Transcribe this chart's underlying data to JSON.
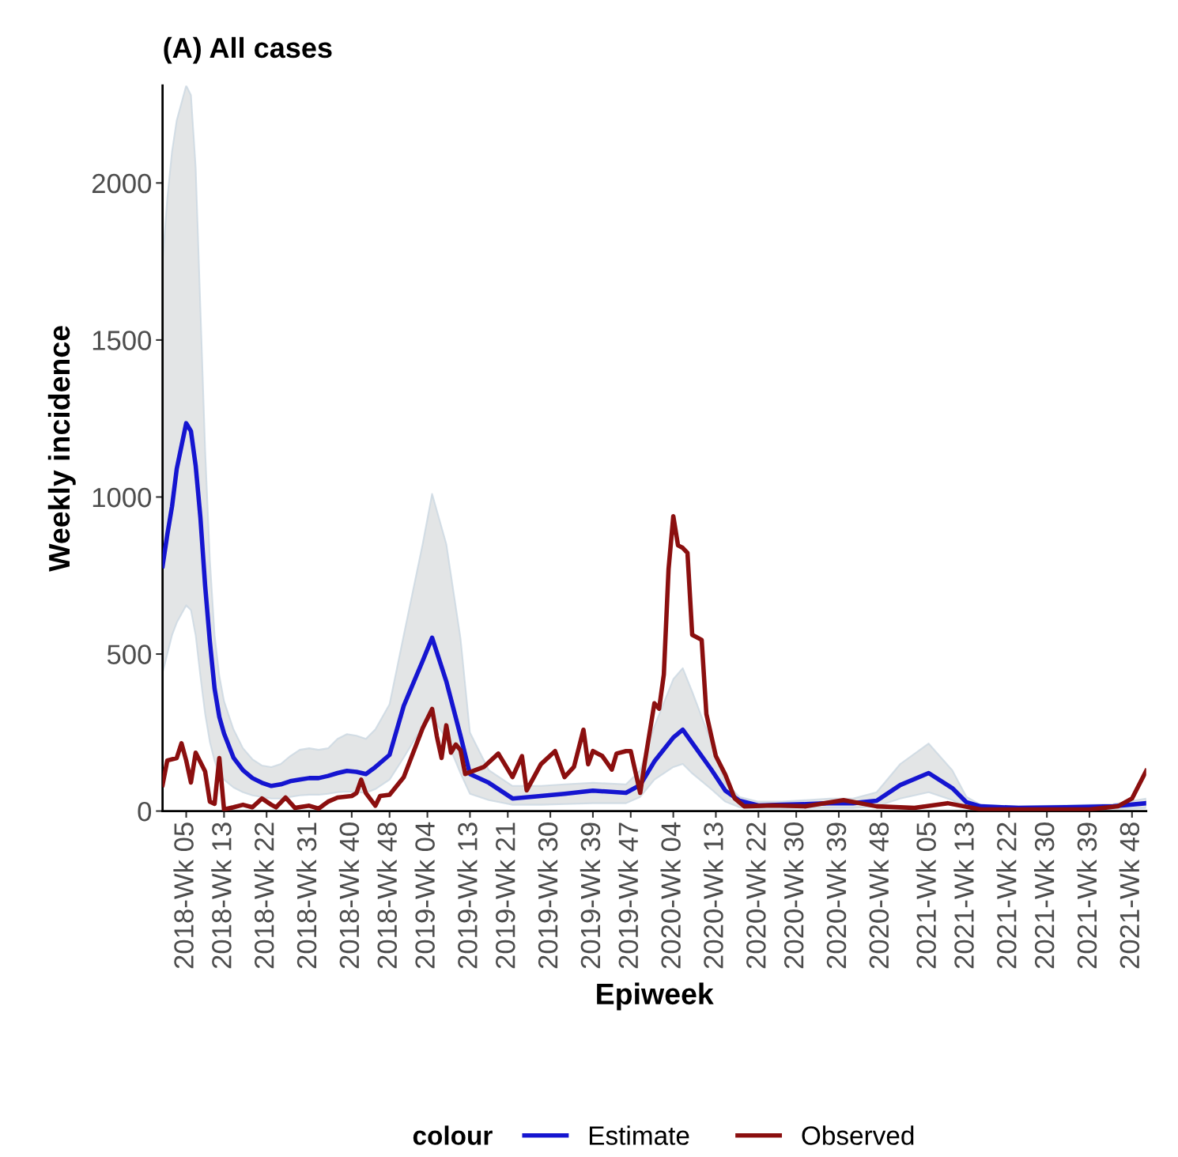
{
  "chart_data": {
    "type": "line",
    "title": "(A) All cases",
    "xlabel": "Epiweek",
    "ylabel": "Weekly incidence",
    "legend_title": "colour",
    "legend": "bottom",
    "grid": false,
    "marker": "none",
    "line_style": "solid",
    "ylim": [
      0,
      2310
    ],
    "yticks": [
      0,
      500,
      1000,
      1500,
      2000
    ],
    "categories": [
      null,
      null,
      null,
      null,
      null,
      "2018-Wk 05",
      null,
      null,
      null,
      null,
      null,
      null,
      null,
      "2018-Wk 13",
      null,
      null,
      null,
      null,
      null,
      null,
      null,
      null,
      "2018-Wk 22",
      null,
      null,
      null,
      null,
      null,
      null,
      null,
      null,
      "2018-Wk 31",
      null,
      null,
      null,
      null,
      null,
      null,
      null,
      null,
      "2018-Wk 40",
      null,
      null,
      null,
      null,
      null,
      null,
      null,
      "2018-Wk 48",
      null,
      null,
      null,
      null,
      null,
      null,
      null,
      "2019-Wk 04",
      null,
      null,
      null,
      null,
      null,
      null,
      null,
      null,
      "2019-Wk 13",
      null,
      null,
      null,
      null,
      null,
      null,
      null,
      "2019-Wk 21",
      null,
      null,
      null,
      null,
      null,
      null,
      null,
      null,
      "2019-Wk 30",
      null,
      null,
      null,
      null,
      null,
      null,
      null,
      null,
      "2019-Wk 39",
      null,
      null,
      null,
      null,
      null,
      null,
      null,
      "2019-Wk 47",
      null,
      null,
      null,
      null,
      null,
      null,
      null,
      null,
      "2020-Wk 04",
      null,
      null,
      null,
      null,
      null,
      null,
      null,
      null,
      "2020-Wk 13",
      null,
      null,
      null,
      null,
      null,
      null,
      null,
      null,
      "2020-Wk 22",
      null,
      null,
      null,
      null,
      null,
      null,
      null,
      "2020-Wk 30",
      null,
      null,
      null,
      null,
      null,
      null,
      null,
      null,
      "2020-Wk 39",
      null,
      null,
      null,
      null,
      null,
      null,
      null,
      null,
      "2020-Wk 48",
      null,
      null,
      null,
      null,
      null,
      null,
      null,
      null,
      null,
      "2021-Wk 05",
      null,
      null,
      null,
      null,
      null,
      null,
      null,
      "2021-Wk 13",
      null,
      null,
      null,
      null,
      null,
      null,
      null,
      null,
      "2021-Wk 22",
      null,
      null,
      null,
      null,
      null,
      null,
      null,
      "2021-Wk 30",
      null,
      null,
      null,
      null,
      null,
      null,
      null,
      null,
      "2021-Wk 39",
      null,
      null,
      null,
      null,
      null,
      null,
      null,
      null,
      "2021-Wk 48",
      null,
      null,
      null
    ],
    "series": [
      {
        "name": "Estimate",
        "color": "#1515d0",
        "values": [
          780,
          880,
          970,
          1090,
          null,
          1235,
          1210,
          1100,
          935,
          718,
          540,
          390,
          300,
          247,
          null,
          170,
          null,
          130,
          null,
          105,
          null,
          90,
          null,
          80,
          null,
          85,
          null,
          95,
          null,
          100,
          null,
          105,
          null,
          105,
          null,
          112,
          null,
          121,
          null,
          128,
          null,
          125,
          null,
          118,
          null,
          140,
          null,
          null,
          179,
          null,
          null,
          335,
          null,
          null,
          null,
          478,
          null,
          552,
          null,
          null,
          413,
          null,
          null,
          240,
          null,
          118,
          null,
          null,
          null,
          90,
          null,
          null,
          null,
          null,
          40,
          null,
          null,
          null,
          null,
          null,
          48,
          null,
          null,
          null,
          null,
          55,
          null,
          null,
          null,
          null,
          null,
          65,
          null,
          null,
          null,
          null,
          null,
          null,
          58,
          null,
          null,
          83,
          null,
          null,
          158,
          null,
          null,
          null,
          234,
          null,
          259,
          null,
          217,
          null,
          null,
          null,
          133,
          null,
          null,
          65,
          null,
          null,
          33,
          null,
          null,
          null,
          18,
          null,
          null,
          null,
          null,
          20,
          null,
          null,
          null,
          null,
          22,
          null,
          null,
          null,
          null,
          25,
          null,
          null,
          null,
          null,
          25,
          null,
          null,
          null,
          null,
          33,
          null,
          null,
          null,
          null,
          83,
          null,
          null,
          null,
          null,
          null,
          121,
          null,
          null,
          null,
          null,
          73,
          null,
          null,
          28,
          null,
          null,
          15,
          null,
          null,
          null,
          null,
          null,
          null,
          null,
          10,
          null,
          null,
          null,
          null,
          null,
          null,
          null,
          null,
          null,
          12,
          null,
          null,
          null,
          null,
          null,
          null,
          null,
          null,
          null,
          15,
          null,
          null,
          null,
          null,
          null,
          null,
          25
        ],
        "lower": [
          440,
          500,
          560,
          600,
          null,
          655,
          640,
          560,
          430,
          310,
          220,
          160,
          120,
          100,
          null,
          75,
          null,
          60,
          null,
          50,
          null,
          45,
          null,
          40,
          null,
          40,
          null,
          45,
          null,
          50,
          null,
          52,
          null,
          52,
          null,
          55,
          null,
          60,
          null,
          62,
          null,
          60,
          null,
          58,
          null,
          70,
          null,
          null,
          100,
          null,
          null,
          170,
          null,
          null,
          null,
          270,
          null,
          300,
          null,
          null,
          230,
          null,
          null,
          120,
          null,
          55,
          null,
          null,
          null,
          35,
          null,
          null,
          null,
          null,
          20,
          null,
          null,
          null,
          null,
          null,
          20,
          null,
          null,
          null,
          null,
          22,
          null,
          null,
          null,
          null,
          null,
          25,
          null,
          null,
          null,
          null,
          null,
          null,
          25,
          null,
          null,
          45,
          null,
          null,
          100,
          null,
          null,
          null,
          140,
          null,
          150,
          null,
          120,
          null,
          null,
          null,
          70,
          null,
          null,
          30,
          null,
          null,
          12,
          null,
          null,
          null,
          8,
          null,
          null,
          null,
          null,
          8,
          null,
          null,
          null,
          null,
          10,
          null,
          null,
          null,
          null,
          10,
          null,
          null,
          null,
          null,
          10,
          null,
          null,
          null,
          null,
          15,
          null,
          null,
          null,
          null,
          40,
          null,
          null,
          null,
          null,
          null,
          60,
          null,
          null,
          null,
          null,
          35,
          null,
          null,
          10,
          null,
          null,
          5,
          null,
          null,
          null,
          null,
          null,
          null,
          null,
          4,
          null,
          null,
          null,
          null,
          null,
          null,
          null,
          null,
          null,
          5,
          null,
          null,
          null,
          null,
          null,
          null,
          null,
          null,
          null,
          6,
          null,
          null,
          null,
          null,
          null,
          null,
          10
        ],
        "upper": [
          1750,
          1950,
          2100,
          2200,
          null,
          2310,
          2280,
          2050,
          1600,
          1150,
          800,
          560,
          430,
          350,
          null,
          260,
          null,
          200,
          null,
          165,
          null,
          145,
          null,
          140,
          null,
          150,
          null,
          175,
          null,
          195,
          null,
          200,
          null,
          195,
          null,
          200,
          null,
          230,
          null,
          245,
          null,
          240,
          null,
          230,
          null,
          260,
          null,
          null,
          340,
          null,
          null,
          560,
          null,
          null,
          null,
          850,
          null,
          1010,
          null,
          null,
          850,
          null,
          null,
          550,
          null,
          250,
          null,
          null,
          null,
          130,
          null,
          null,
          null,
          null,
          80,
          null,
          null,
          null,
          null,
          null,
          80,
          null,
          null,
          null,
          null,
          85,
          null,
          null,
          null,
          null,
          null,
          90,
          null,
          null,
          null,
          null,
          null,
          null,
          85,
          null,
          null,
          130,
          null,
          null,
          270,
          null,
          null,
          null,
          420,
          null,
          455,
          null,
          380,
          null,
          null,
          null,
          220,
          null,
          null,
          90,
          null,
          null,
          45,
          null,
          null,
          null,
          30,
          null,
          null,
          null,
          null,
          30,
          null,
          null,
          null,
          null,
          35,
          null,
          null,
          null,
          null,
          40,
          null,
          null,
          null,
          null,
          40,
          null,
          null,
          null,
          null,
          60,
          null,
          null,
          null,
          null,
          150,
          null,
          null,
          null,
          null,
          null,
          215,
          null,
          null,
          null,
          null,
          130,
          null,
          null,
          45,
          null,
          null,
          20,
          null,
          null,
          null,
          null,
          null,
          null,
          null,
          15,
          null,
          null,
          null,
          null,
          null,
          null,
          null,
          null,
          null,
          18,
          null,
          null,
          null,
          null,
          null,
          null,
          null,
          null,
          null,
          22,
          null,
          null,
          null,
          null,
          null,
          null,
          40
        ]
      },
      {
        "name": "Observed",
        "color": "#8b0f0f",
        "values": [
          83,
          161,
          null,
          169,
          216,
          161,
          91,
          186,
          null,
          126,
          30,
          23,
          169,
          5,
          null,
          12,
          null,
          20,
          null,
          12,
          null,
          40,
          null,
          20,
          12,
          null,
          43,
          null,
          10,
          null,
          null,
          17,
          null,
          8,
          null,
          30,
          null,
          43,
          null,
          null,
          48,
          57,
          100,
          57,
          null,
          17,
          48,
          null,
          52,
          null,
          null,
          108,
          null,
          186,
          null,
          264,
          null,
          325,
          238,
          169,
          273,
          186,
          212,
          194,
          118,
          124,
          null,
          null,
          141,
          null,
          null,
          183,
          null,
          null,
          108,
          null,
          175,
          66,
          null,
          null,
          149,
          null,
          null,
          191,
          null,
          108,
          null,
          141,
          null,
          259,
          149,
          191,
          null,
          175,
          null,
          132,
          183,
          null,
          191,
          191,
          null,
          58,
          158,
          null,
          343,
          326,
          435,
          771,
          939,
          846,
          838,
          822,
          561,
          null,
          545,
          309,
          null,
          175,
          null,
          116,
          null,
          40,
          null,
          15,
          null,
          null,
          null,
          null,
          null,
          18,
          null,
          null,
          null,
          null,
          null,
          null,
          15,
          null,
          null,
          null,
          null,
          null,
          null,
          null,
          35,
          null,
          null,
          null,
          null,
          null,
          null,
          15,
          null,
          null,
          null,
          null,
          null,
          null,
          null,
          10,
          null,
          null,
          null,
          null,
          null,
          null,
          25,
          null,
          null,
          null,
          null,
          null,
          null,
          5,
          null,
          null,
          null,
          null,
          null,
          null,
          null,
          null,
          null,
          null,
          null,
          null,
          5,
          null,
          null,
          null,
          null,
          null,
          null,
          null,
          null,
          null,
          5,
          null,
          null,
          null,
          null,
          null,
          15,
          null,
          null,
          40,
          null,
          null,
          128
        ]
      }
    ]
  }
}
